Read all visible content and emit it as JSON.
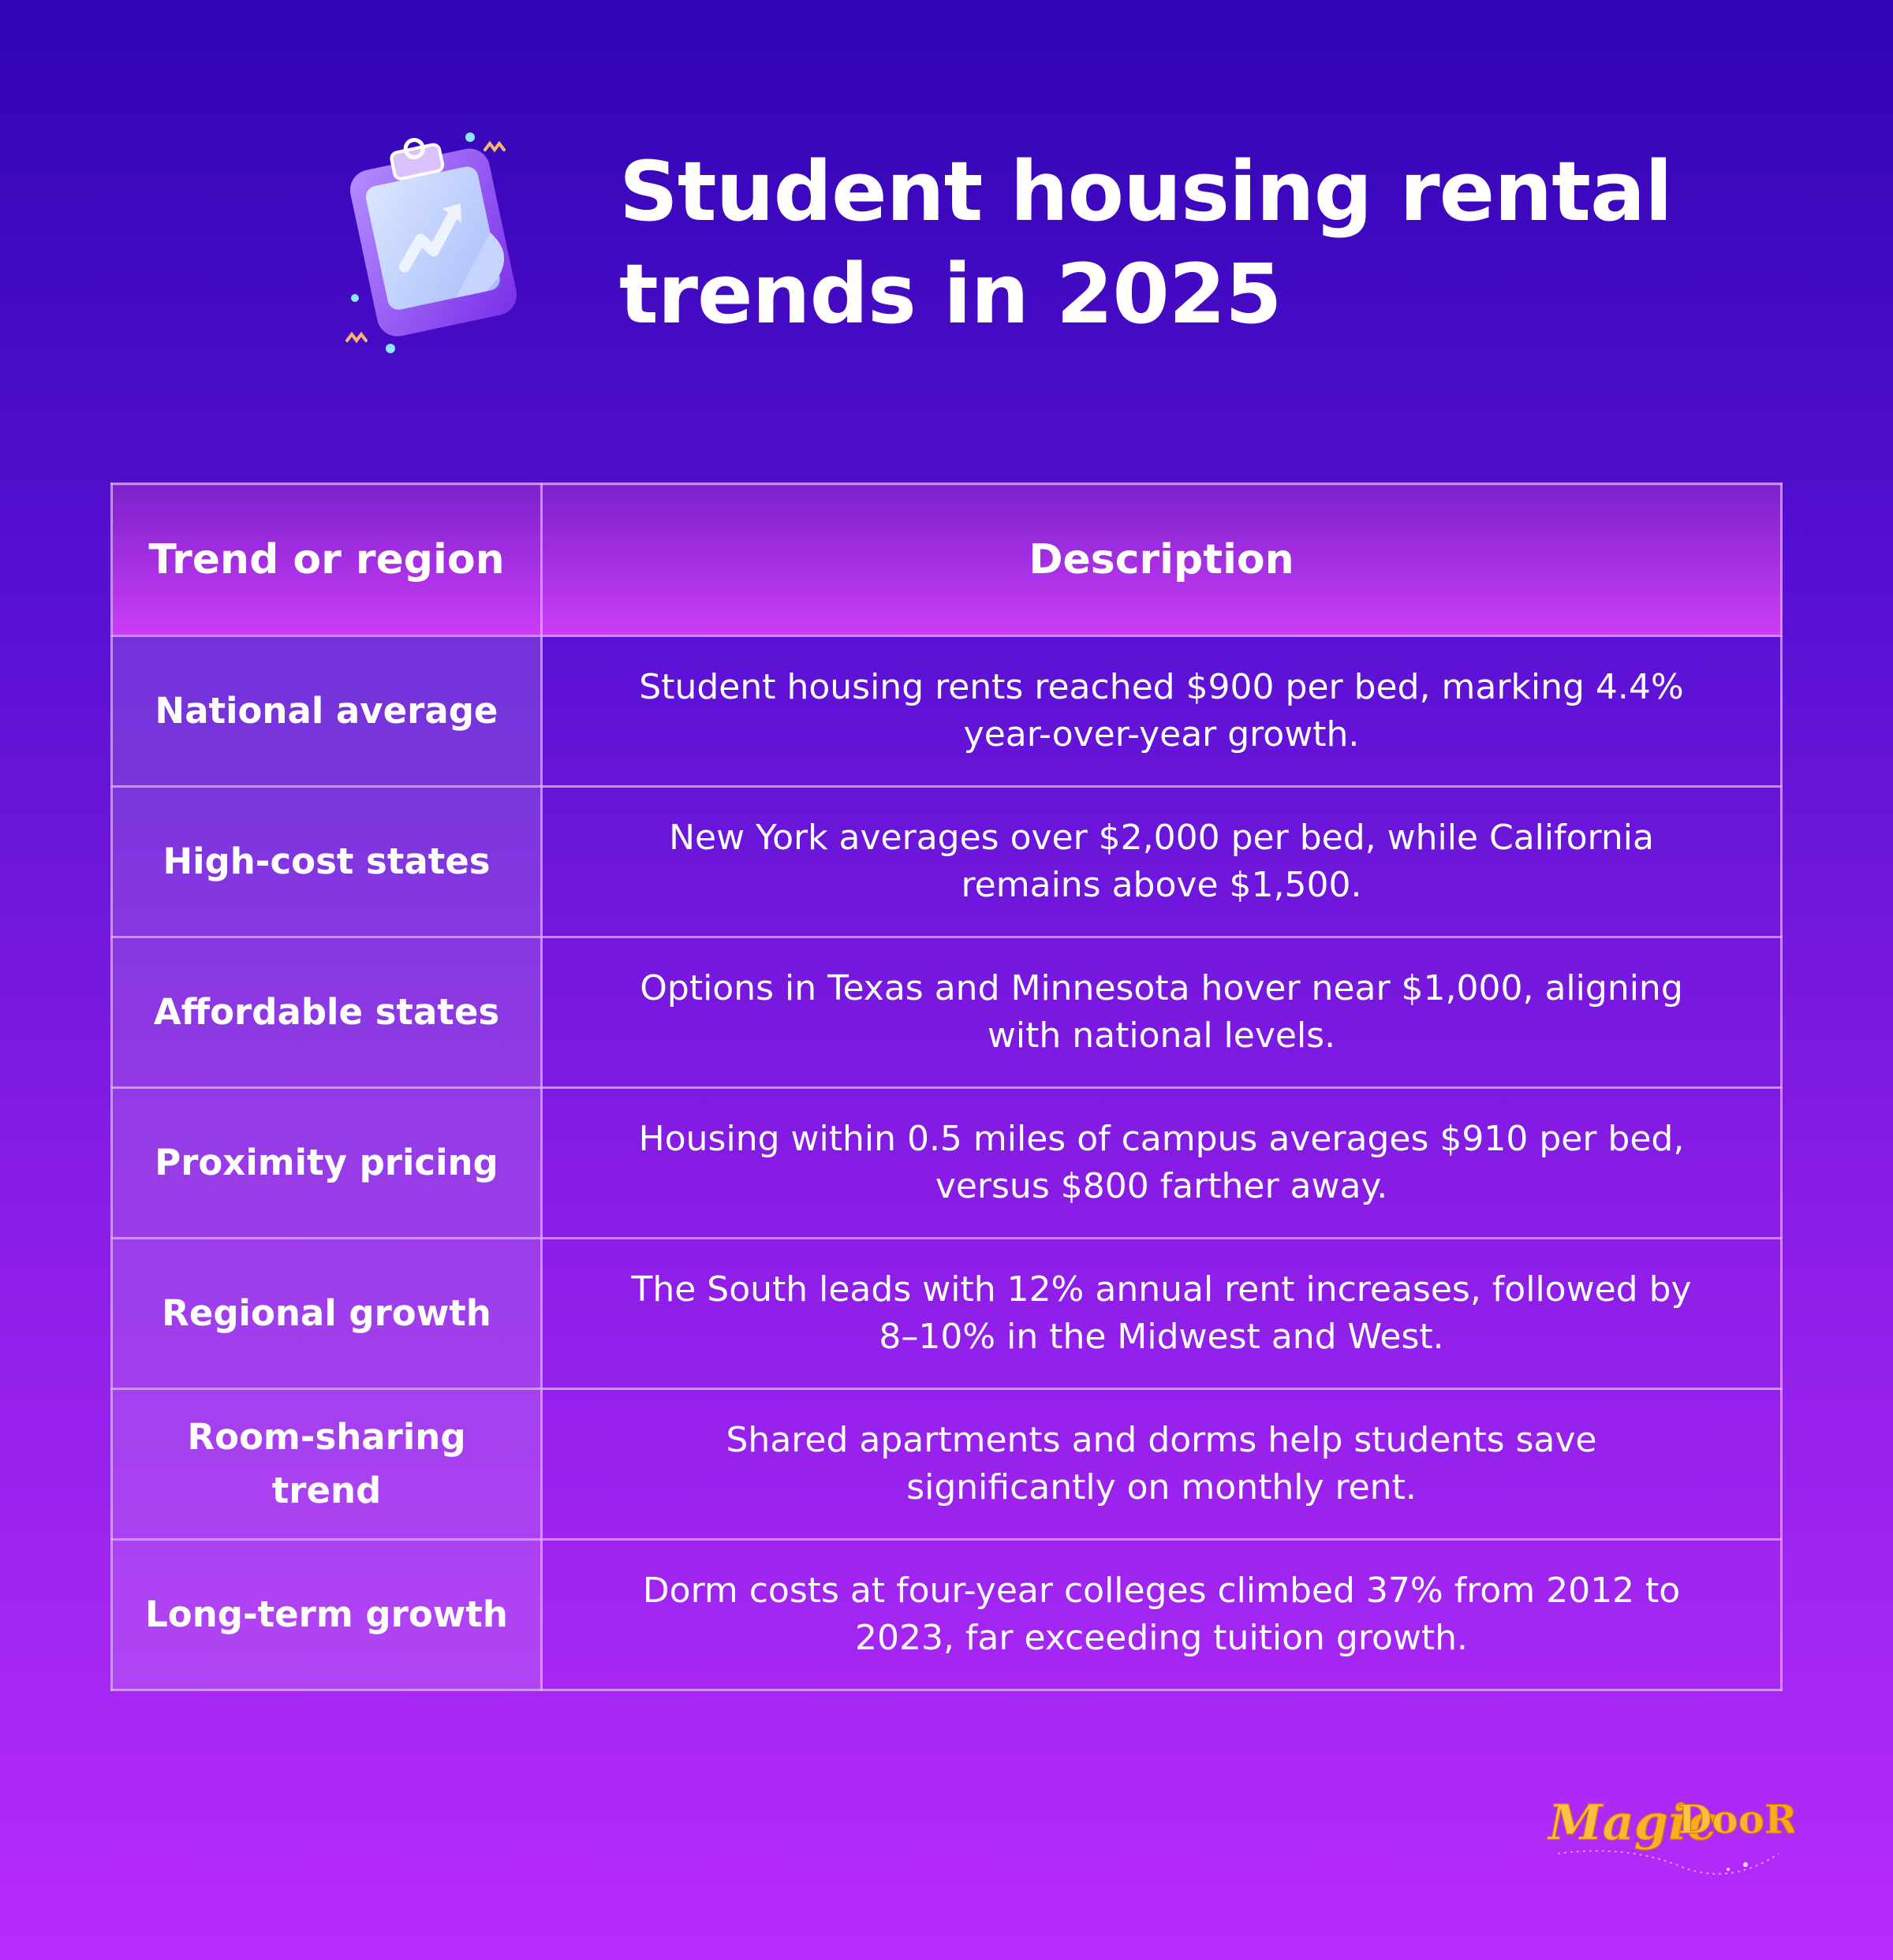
{
  "title": "Student housing rental trends in 2025",
  "icon": "clipboard-chart-icon",
  "table": {
    "headers": [
      "Trend or region",
      "Description"
    ],
    "rows": [
      {
        "trend": "National average",
        "description": "Student housing rents reached $900 per bed, marking 4.4% year-over-year growth."
      },
      {
        "trend": "High-cost states",
        "description": "New York averages over $2,000 per bed, while California remains above $1,500."
      },
      {
        "trend": "Affordable states",
        "description": "Options in Texas and Minnesota hover near $1,000, aligning with national levels."
      },
      {
        "trend": "Proximity pricing",
        "description": "Housing within 0.5 miles of campus averages $910 per bed, versus $800 farther away."
      },
      {
        "trend": "Regional growth",
        "description": "The South leads with 12% annual rent increases, followed by 8–10% in the Midwest and West."
      },
      {
        "trend": "Room-sharing trend",
        "description": "Shared apartments and dorms help students save significantly on monthly rent."
      },
      {
        "trend": "Long-term growth",
        "description": "Dorm costs at four-year colleges climbed 37% from 2012 to 2023, far exceeding tuition growth."
      }
    ]
  },
  "brand": {
    "name": "MagicDoor",
    "color": "#f5b623"
  }
}
